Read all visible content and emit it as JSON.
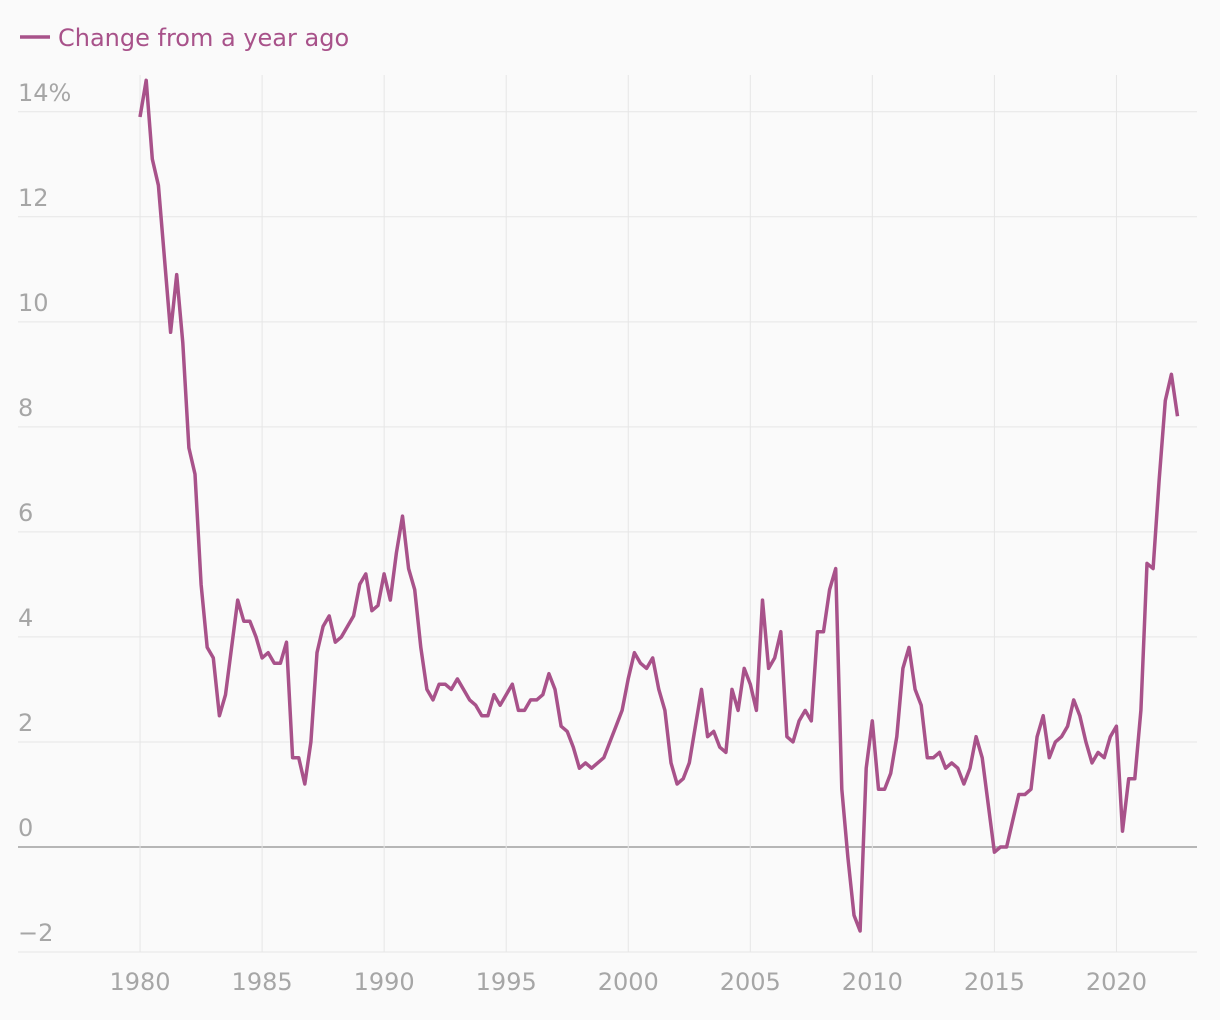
{
  "chart_data": {
    "type": "line",
    "series": [
      {
        "name": "Change from a year ago",
        "color": "#a8528a",
        "values": [
          13.9,
          14.6,
          13.1,
          12.6,
          11.2,
          9.8,
          10.9,
          9.6,
          7.6,
          7.1,
          5.0,
          3.8,
          3.6,
          2.5,
          2.9,
          3.8,
          4.7,
          4.3,
          4.3,
          4.0,
          3.6,
          3.7,
          3.5,
          3.5,
          3.9,
          1.7,
          1.7,
          1.2,
          2.0,
          3.7,
          4.2,
          4.4,
          3.9,
          4.0,
          4.2,
          4.4,
          5.0,
          5.2,
          4.5,
          4.6,
          5.2,
          4.7,
          5.6,
          6.3,
          5.3,
          4.9,
          3.8,
          3.0,
          2.8,
          3.1,
          3.1,
          3.0,
          3.2,
          3.0,
          2.8,
          2.7,
          2.5,
          2.5,
          2.9,
          2.7,
          2.9,
          3.1,
          2.6,
          2.6,
          2.8,
          2.8,
          2.9,
          3.3,
          3.0,
          2.3,
          2.2,
          1.9,
          1.5,
          1.6,
          1.5,
          1.6,
          1.7,
          2.0,
          2.3,
          2.6,
          3.2,
          3.7,
          3.5,
          3.4,
          3.6,
          3.0,
          2.6,
          1.6,
          1.2,
          1.3,
          1.6,
          2.3,
          3.0,
          2.1,
          2.2,
          1.9,
          1.8,
          3.0,
          2.6,
          3.4,
          3.1,
          2.6,
          4.7,
          3.4,
          3.6,
          4.1,
          2.1,
          2.0,
          2.4,
          2.6,
          2.4,
          4.1,
          4.1,
          4.9,
          5.3,
          1.1,
          -0.2,
          -1.3,
          -1.6,
          1.5,
          2.4,
          1.1,
          1.1,
          1.4,
          2.1,
          3.4,
          3.8,
          3.0,
          2.7,
          1.7,
          1.7,
          1.8,
          1.5,
          1.6,
          1.5,
          1.2,
          1.5,
          2.1,
          1.7,
          0.8,
          -0.1,
          0.0,
          0.0,
          0.5,
          1.0,
          1.0,
          1.1,
          2.1,
          2.5,
          1.7,
          2.0,
          2.1,
          2.3,
          2.8,
          2.5,
          2.0,
          1.6,
          1.8,
          1.7,
          2.1,
          2.3,
          0.3,
          1.3,
          1.3,
          2.6,
          5.4,
          5.3,
          7.0,
          8.5,
          9.0,
          8.2
        ]
      }
    ],
    "x": [
      1980,
      1980.25,
      1980.5,
      1980.75,
      1981,
      1981.25,
      1981.5,
      1981.75,
      1982,
      1982.25,
      1982.5,
      1982.75,
      1983,
      1983.25,
      1983.5,
      1983.75,
      1984,
      1984.25,
      1984.5,
      1984.75,
      1985,
      1985.25,
      1985.5,
      1985.75,
      1986,
      1986.25,
      1986.5,
      1986.75,
      1987,
      1987.25,
      1987.5,
      1987.75,
      1988,
      1988.25,
      1988.5,
      1988.75,
      1989,
      1989.25,
      1989.5,
      1989.75,
      1990,
      1990.25,
      1990.5,
      1990.75,
      1991,
      1991.25,
      1991.5,
      1991.75,
      1992,
      1992.25,
      1992.5,
      1992.75,
      1993,
      1993.25,
      1993.5,
      1993.75,
      1994,
      1994.25,
      1994.5,
      1994.75,
      1995,
      1995.25,
      1995.5,
      1995.75,
      1996,
      1996.25,
      1996.5,
      1996.75,
      1997,
      1997.25,
      1997.5,
      1997.75,
      1998,
      1998.25,
      1998.5,
      1998.75,
      1999,
      1999.25,
      1999.5,
      1999.75,
      2000,
      2000.25,
      2000.5,
      2000.75,
      2001,
      2001.25,
      2001.5,
      2001.75,
      2002,
      2002.25,
      2002.5,
      2002.75,
      2003,
      2003.25,
      2003.5,
      2003.75,
      2004,
      2004.25,
      2004.5,
      2004.75,
      2005,
      2005.25,
      2005.5,
      2005.75,
      2006,
      2006.25,
      2006.5,
      2006.75,
      2007,
      2007.25,
      2007.5,
      2007.75,
      2008,
      2008.25,
      2008.5,
      2008.75,
      2009,
      2009.25,
      2009.5,
      2009.75,
      2010,
      2010.25,
      2010.5,
      2010.75,
      2011,
      2011.25,
      2011.5,
      2011.75,
      2012,
      2012.25,
      2012.5,
      2012.75,
      2013,
      2013.25,
      2013.5,
      2013.75,
      2014,
      2014.25,
      2014.5,
      2014.75,
      2015,
      2015.25,
      2015.5,
      2015.75,
      2016,
      2016.25,
      2016.5,
      2016.75,
      2017,
      2017.25,
      2017.5,
      2017.75,
      2018,
      2018.25,
      2018.5,
      2018.75,
      2019,
      2019.25,
      2019.5,
      2019.75,
      2020,
      2020.25,
      2020.5,
      2020.75,
      2021,
      2021.25,
      2021.5,
      2021.75,
      2022,
      2022.25,
      2022.5
    ],
    "xlim": [
      1975,
      2023.3
    ],
    "xticks": [
      1980,
      1985,
      1990,
      1995,
      2000,
      2005,
      2010,
      2015,
      2020
    ],
    "ylim": [
      -2,
      14.7
    ],
    "yticks": [
      {
        "value": -2,
        "label": "−2"
      },
      0,
      2,
      4,
      6,
      8,
      10,
      12,
      {
        "value": 14,
        "label": "14%"
      }
    ],
    "grid": true,
    "legend": "top-left"
  }
}
